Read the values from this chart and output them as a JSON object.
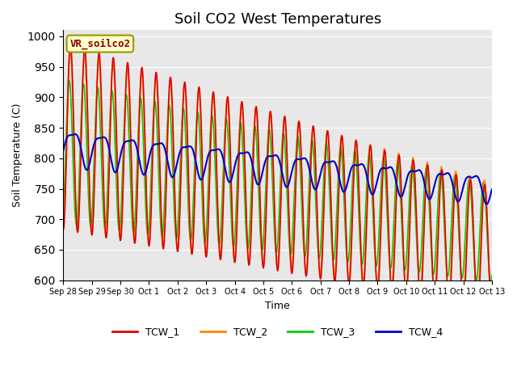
{
  "title": "Soil CO2 West Temperatures",
  "xlabel": "Time",
  "ylabel": "Soil Temperature (C)",
  "ylim": [
    600,
    1010
  ],
  "annotation": "VR_soilco2",
  "bg_color": "#e8e8e8",
  "series": {
    "TCW_1": {
      "color": "#dd0000",
      "lw": 1.2
    },
    "TCW_2": {
      "color": "#ff8800",
      "lw": 1.2
    },
    "TCW_3": {
      "color": "#00cc00",
      "lw": 1.2
    },
    "TCW_4": {
      "color": "#0000cc",
      "lw": 1.5
    }
  },
  "xtick_labels": [
    "Sep 28",
    "Sep 29",
    "Sep 30",
    "Oct 1",
    "Oct 2",
    "Oct 3",
    "Oct 4",
    "Oct 5",
    "Oct 6",
    "Oct 7",
    "Oct 8",
    "Oct 9",
    "Oct 10",
    "Oct 11",
    "Oct 12",
    "Oct 13"
  ],
  "yticks": [
    600,
    650,
    700,
    750,
    800,
    850,
    900,
    950,
    1000
  ],
  "title_fontsize": 13
}
